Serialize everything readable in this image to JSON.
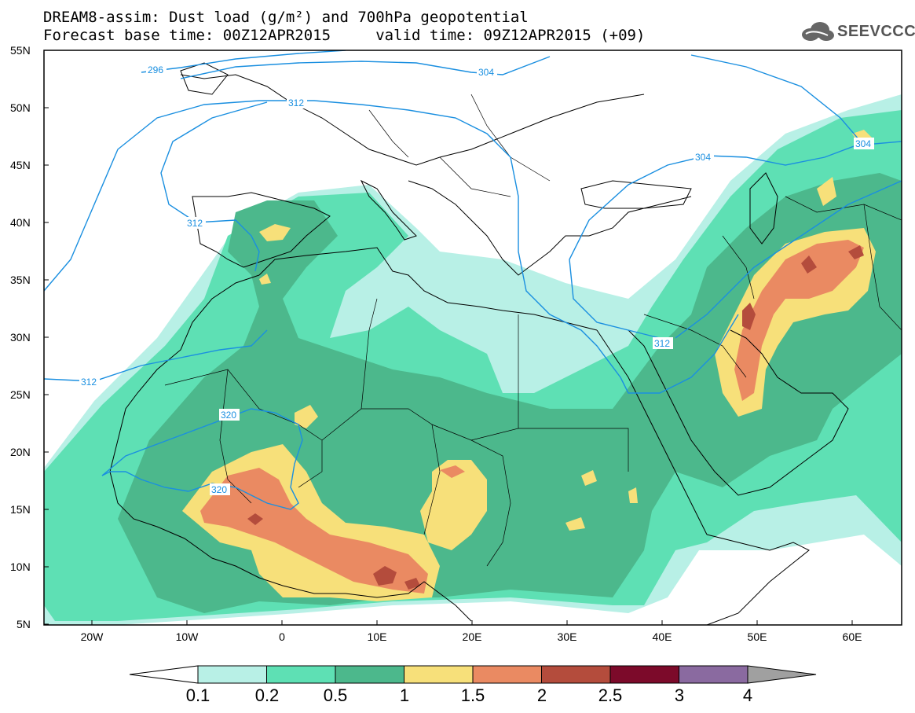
{
  "title": {
    "line1": "DREAM8-assim: Dust load (g/m²) and 700hPa geopotential",
    "line2": "Forecast base time: 00Z12APR2015     valid time: 09Z12APR2015 (+09)"
  },
  "logo": {
    "text": "SEEVCCC",
    "icon": "cloud-logo-icon"
  },
  "axes": {
    "lat_labels": [
      "55N",
      "50N",
      "45N",
      "40N",
      "35N",
      "30N",
      "25N",
      "20N",
      "15N",
      "10N",
      "5N"
    ],
    "lon_labels": [
      "20W",
      "10W",
      "0",
      "10E",
      "20E",
      "30E",
      "40E",
      "50E",
      "60E"
    ]
  },
  "contours": [
    {
      "label": "296"
    },
    {
      "label": "304"
    },
    {
      "label": "312"
    },
    {
      "label": "312"
    },
    {
      "label": "304"
    },
    {
      "label": "304"
    },
    {
      "label": "312"
    },
    {
      "label": "320"
    },
    {
      "label": "320"
    },
    {
      "label": "312"
    }
  ],
  "colorbar": {
    "levels": [
      "0.1",
      "0.2",
      "0.5",
      "1",
      "1.5",
      "2",
      "2.5",
      "3",
      "4"
    ],
    "colors": [
      "#b8f0e6",
      "#5ee0b4",
      "#4cb88c",
      "#f7e07a",
      "#ea8a62",
      "#b44c3c",
      "#7c0a2a",
      "#8a6aa0",
      "#a0a0a0"
    ]
  }
}
